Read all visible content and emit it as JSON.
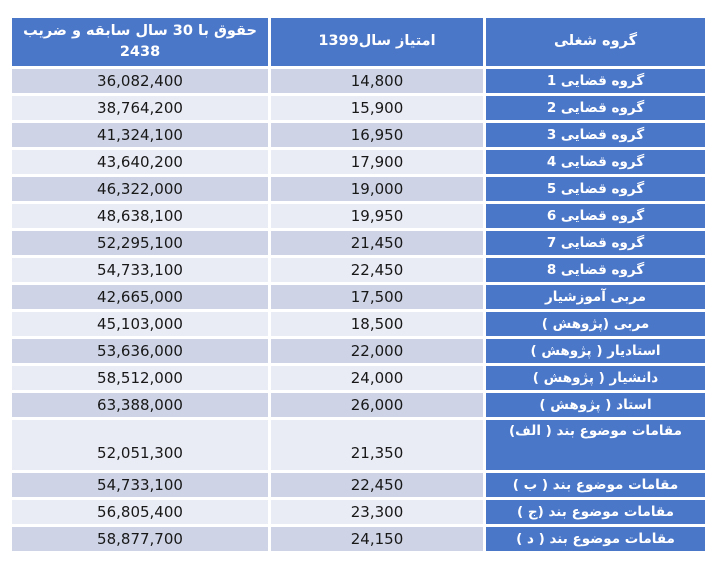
{
  "colors": {
    "header_blue": "#4b77c9",
    "row_dark": "#ced4e6",
    "row_light": "#e9ebf5",
    "number_text": "#181818",
    "header_text": "#ffffff"
  },
  "table": {
    "headers": {
      "group": "گروه شغلی",
      "score": "امتیاز سال1399",
      "salary_line1": "حقوق با 30 سال سابقه و ضریب",
      "salary_line2": "2438"
    },
    "rows": [
      {
        "group": "گروه قضایی 1",
        "score": "14,800",
        "salary": "36,082,400"
      },
      {
        "group": "گروه قضایی 2",
        "score": "15,900",
        "salary": "38,764,200"
      },
      {
        "group": "گروه قضایی 3",
        "score": "16,950",
        "salary": "41,324,100"
      },
      {
        "group": "گروه قضایی 4",
        "score": "17,900",
        "salary": "43,640,200"
      },
      {
        "group": "گروه قضایی 5",
        "score": "19,000",
        "salary": "46,322,000"
      },
      {
        "group": "گروه قضایی 6",
        "score": "19,950",
        "salary": "48,638,100"
      },
      {
        "group": "گروه قضایی 7",
        "score": "21,450",
        "salary": "52,295,100"
      },
      {
        "group": "گروه قضایی 8",
        "score": "22,450",
        "salary": "54,733,100"
      },
      {
        "group": "مربی آموزشیار",
        "score": "17,500",
        "salary": "42,665,000"
      },
      {
        "group": "مربی (پژوهش )",
        "score": "18,500",
        "salary": "45,103,000"
      },
      {
        "group": "استادیار ( پژوهش )",
        "score": "22,000",
        "salary": "53,636,000"
      },
      {
        "group": "دانشیار ( پژوهش )",
        "score": "24,000",
        "salary": "58,512,000"
      },
      {
        "group": "استاد ( پژوهش )",
        "score": "26,000",
        "salary": "63,388,000"
      },
      {
        "group": "مقامات موضوع بند ( الف)",
        "score": "21,350",
        "salary": "52,051,300",
        "tall": true
      },
      {
        "group": "مقامات موضوع بند ( ب )",
        "score": "22,450",
        "salary": "54,733,100"
      },
      {
        "group": "مقامات موضوع بند (ج  )",
        "score": "23,300",
        "salary": "56,805,400"
      },
      {
        "group": "مقامات موضوع بند ( د  )",
        "score": "24,150",
        "salary": "58,877,700"
      }
    ]
  }
}
